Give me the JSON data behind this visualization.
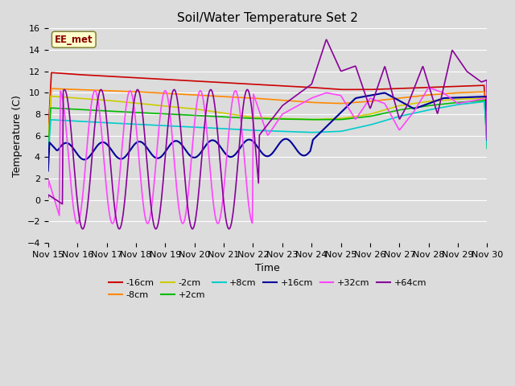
{
  "title": "Soil/Water Temperature Set 2",
  "xlabel": "Time",
  "ylabel": "Temperature (C)",
  "ylim": [
    -4,
    16
  ],
  "yticks": [
    -4,
    -2,
    0,
    2,
    4,
    6,
    8,
    10,
    12,
    14,
    16
  ],
  "xlim": [
    0,
    15
  ],
  "xtick_labels": [
    "Nov 15",
    "Nov 16",
    "Nov 17",
    "Nov 18",
    "Nov 19",
    "Nov 20",
    "Nov 21",
    "Nov 22",
    "Nov 23",
    "Nov 24",
    "Nov 25",
    "Nov 26",
    "Nov 27",
    "Nov 28",
    "Nov 29",
    "Nov 30"
  ],
  "background_color": "#dcdcdc",
  "plot_bg_color": "#dcdcdc",
  "series": {
    "-16cm": {
      "color": "#cc0000",
      "lw": 1.2
    },
    "-8cm": {
      "color": "#ff8800",
      "lw": 1.2
    },
    "-2cm": {
      "color": "#cccc00",
      "lw": 1.2
    },
    "+2cm": {
      "color": "#00bb00",
      "lw": 1.2
    },
    "+8cm": {
      "color": "#00cccc",
      "lw": 1.2
    },
    "+16cm": {
      "color": "#000099",
      "lw": 1.5
    },
    "+32cm": {
      "color": "#ff44ff",
      "lw": 1.2
    },
    "+64cm": {
      "color": "#880099",
      "lw": 1.2
    }
  },
  "annotation_text": "EE_met",
  "annotation_color": "#880000",
  "annotation_bg": "#ffffcc",
  "title_fontsize": 11
}
